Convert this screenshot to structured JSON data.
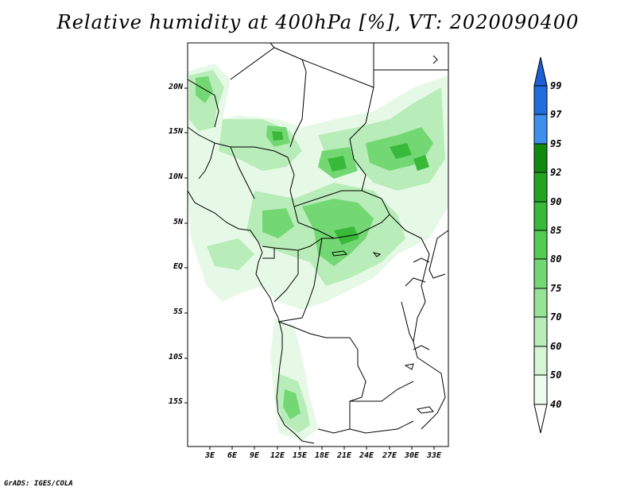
{
  "title": "Relative humidity at 400hPa [%], VT: 2020090400",
  "footer": "GrADS: IGES/COLA",
  "map": {
    "variable": "Relative humidity",
    "level": "400hPa",
    "units": "%",
    "valid_time": "2020090400",
    "lat_ticks": [
      "20N",
      "15N",
      "10N",
      "5N",
      "EQ",
      "5S",
      "10S",
      "15S"
    ],
    "lon_ticks": [
      "3E",
      "6E",
      "9E",
      "12E",
      "15E",
      "18E",
      "21E",
      "24E",
      "27E",
      "30E",
      "33E"
    ]
  },
  "colorbar": {
    "levels": [
      "99",
      "97",
      "95",
      "92",
      "90",
      "85",
      "80",
      "75",
      "70",
      "60",
      "50",
      "40"
    ],
    "colors": [
      "#1e5fd6",
      "#1e6ee0",
      "#3f8ff0",
      "#0f8a0f",
      "#22a322",
      "#39b939",
      "#52cc52",
      "#73d873",
      "#96e396",
      "#b8ecb8",
      "#d5f5d5",
      "#eefbee",
      "#ffffff"
    ]
  }
}
